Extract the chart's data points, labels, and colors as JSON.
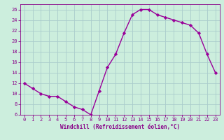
{
  "x": [
    0,
    1,
    2,
    3,
    4,
    5,
    6,
    7,
    8,
    9,
    10,
    11,
    12,
    13,
    14,
    15,
    16,
    17,
    18,
    19,
    20,
    21,
    22,
    23
  ],
  "y": [
    12,
    11,
    10,
    9.5,
    9.5,
    8.5,
    7.5,
    7,
    6,
    10.5,
    15,
    17.5,
    21.5,
    25,
    26,
    26,
    25,
    24.5,
    24,
    23.5,
    23,
    21.5,
    17.5,
    14
  ],
  "line_color": "#990099",
  "marker": "D",
  "marker_size": 2.2,
  "bg_color": "#cceedd",
  "grid_color": "#aacccc",
  "xlabel": "Windchill (Refroidissement éolien,°C)",
  "xlabel_color": "#880088",
  "tick_color": "#880088",
  "ylim": [
    6,
    27
  ],
  "yticks": [
    6,
    8,
    10,
    12,
    14,
    16,
    18,
    20,
    22,
    24,
    26
  ],
  "xlim": [
    -0.5,
    23.5
  ],
  "xticks": [
    0,
    1,
    2,
    3,
    4,
    5,
    6,
    7,
    8,
    9,
    10,
    11,
    12,
    13,
    14,
    15,
    16,
    17,
    18,
    19,
    20,
    21,
    22,
    23
  ],
  "line_width": 1.0,
  "tick_fontsize": 5.0,
  "xlabel_fontsize": 5.5
}
